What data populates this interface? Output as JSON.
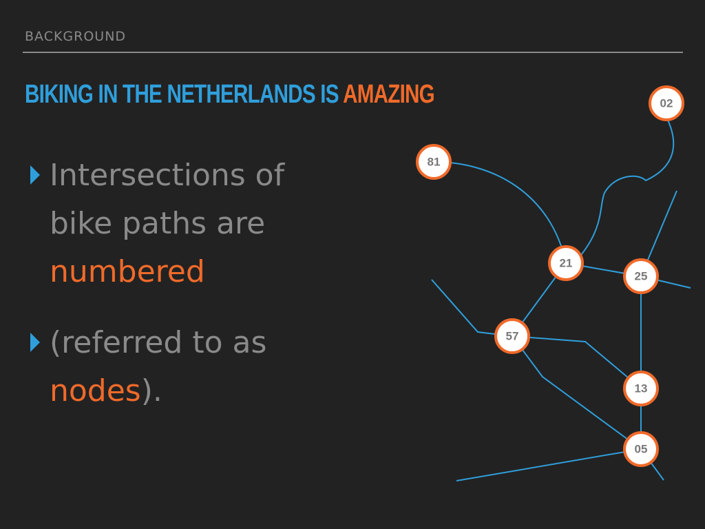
{
  "header": {
    "section_label": "BACKGROUND",
    "title_part1": "BIKING IN THE NETHERLANDS IS ",
    "title_part2": "AMAZING"
  },
  "bullets": [
    {
      "line1": "Intersections of",
      "line2": "bike paths are",
      "line3": "numbered"
    },
    {
      "line1": "(referred to as",
      "line2_highlight": "nodes",
      "line2_rest": ")."
    }
  ],
  "colors": {
    "background": "#222222",
    "accent_blue": "#2f9fdc",
    "accent_orange": "#f06a2a",
    "text_gray": "#8a8a8a"
  },
  "nodes": [
    {
      "id": "n02",
      "label": "02"
    },
    {
      "id": "n81",
      "label": "81"
    },
    {
      "id": "n21",
      "label": "21"
    },
    {
      "id": "n25",
      "label": "25"
    },
    {
      "id": "n57",
      "label": "57"
    },
    {
      "id": "n13",
      "label": "13"
    },
    {
      "id": "n05",
      "label": "05"
    }
  ],
  "edges": [
    [
      "81",
      "21"
    ],
    [
      "02",
      "21"
    ],
    [
      "21",
      "25"
    ],
    [
      "21",
      "57"
    ],
    [
      "57",
      "13"
    ],
    [
      "57",
      "05"
    ],
    [
      "25",
      "13"
    ],
    [
      "13",
      "05"
    ]
  ]
}
